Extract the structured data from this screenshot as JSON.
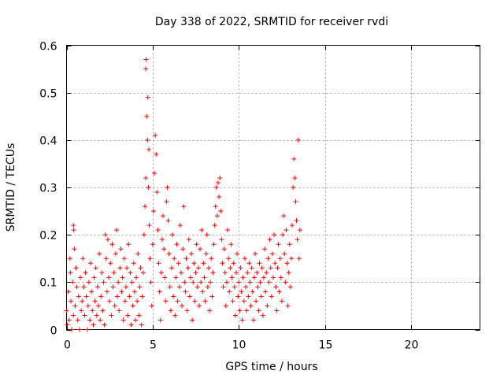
{
  "chart_data": {
    "type": "scatter",
    "title": "Day 338 of 2022, SRMTID for receiver rvdi",
    "xlabel": "GPS time / hours",
    "ylabel": "SRMTID / TECUs",
    "xlim": [
      0,
      24
    ],
    "ylim": [
      0,
      0.6
    ],
    "xticks": [
      0,
      5,
      10,
      15,
      20
    ],
    "yticks": [
      0,
      0.1,
      0.2,
      0.3,
      0.4,
      0.5,
      0.6
    ],
    "xtick_labels": [
      "0",
      "5",
      "10",
      "15",
      "20"
    ],
    "ytick_labels": [
      "0",
      "0.1",
      "0.2",
      "0.3",
      "0.4",
      "0.5",
      "0.6"
    ],
    "grid": true,
    "marker": "+",
    "color": "#ff0000",
    "series": [
      {
        "name": "rvdi",
        "points": [
          [
            0.0,
            0.04
          ],
          [
            0.05,
            0.01
          ],
          [
            0.1,
            0.08
          ],
          [
            0.15,
            0.02
          ],
          [
            0.2,
            0.15
          ],
          [
            0.22,
            0.12
          ],
          [
            0.25,
            0.06
          ],
          [
            0.3,
            0.0
          ],
          [
            0.35,
            0.1
          ],
          [
            0.4,
            0.03
          ],
          [
            0.4,
            0.22
          ],
          [
            0.42,
            0.21
          ],
          [
            0.45,
            0.17
          ],
          [
            0.5,
            0.05
          ],
          [
            0.55,
            0.13
          ],
          [
            0.6,
            0.09
          ],
          [
            0.65,
            0.02
          ],
          [
            0.7,
            0.07
          ],
          [
            0.75,
            0.0
          ],
          [
            0.8,
            0.11
          ],
          [
            0.85,
            0.04
          ],
          [
            0.9,
            0.06
          ],
          [
            0.95,
            0.15
          ],
          [
            1.0,
            0.09
          ],
          [
            1.05,
            0.03
          ],
          [
            1.1,
            0.12
          ],
          [
            1.15,
            0.07
          ],
          [
            1.2,
            0.0
          ],
          [
            1.25,
            0.05
          ],
          [
            1.3,
            0.1
          ],
          [
            1.35,
            0.02
          ],
          [
            1.4,
            0.14
          ],
          [
            1.45,
            0.08
          ],
          [
            1.5,
            0.04
          ],
          [
            1.55,
            0.01
          ],
          [
            1.6,
            0.11
          ],
          [
            1.65,
            0.06
          ],
          [
            1.7,
            0.13
          ],
          [
            1.75,
            0.03
          ],
          [
            1.8,
            0.09
          ],
          [
            1.85,
            0.05
          ],
          [
            1.9,
            0.16
          ],
          [
            1.95,
            0.02
          ],
          [
            2.0,
            0.07
          ],
          [
            2.05,
            0.12
          ],
          [
            2.1,
            0.04
          ],
          [
            2.15,
            0.1
          ],
          [
            2.2,
            0.01
          ],
          [
            2.25,
            0.2
          ],
          [
            2.3,
            0.15
          ],
          [
            2.35,
            0.08
          ],
          [
            2.4,
            0.19
          ],
          [
            2.45,
            0.11
          ],
          [
            2.5,
            0.06
          ],
          [
            2.55,
            0.14
          ],
          [
            2.6,
            0.03
          ],
          [
            2.65,
            0.18
          ],
          [
            2.7,
            0.09
          ],
          [
            2.75,
            0.12
          ],
          [
            2.8,
            0.05
          ],
          [
            2.85,
            0.16
          ],
          [
            2.9,
            0.21
          ],
          [
            2.95,
            0.07
          ],
          [
            3.0,
            0.1
          ],
          [
            3.05,
            0.04
          ],
          [
            3.1,
            0.13
          ],
          [
            3.15,
            0.17
          ],
          [
            3.2,
            0.08
          ],
          [
            3.25,
            0.11
          ],
          [
            3.3,
            0.02
          ],
          [
            3.35,
            0.15
          ],
          [
            3.4,
            0.06
          ],
          [
            3.45,
            0.09
          ],
          [
            3.5,
            0.13
          ],
          [
            3.55,
            0.03
          ],
          [
            3.6,
            0.18
          ],
          [
            3.65,
            0.07
          ],
          [
            3.7,
            0.12
          ],
          [
            3.75,
            0.01
          ],
          [
            3.8,
            0.1
          ],
          [
            3.85,
            0.05
          ],
          [
            3.9,
            0.14
          ],
          [
            3.95,
            0.08
          ],
          [
            4.0,
            0.02
          ],
          [
            4.05,
            0.11
          ],
          [
            4.1,
            0.06
          ],
          [
            4.15,
            0.16
          ],
          [
            4.2,
            0.03
          ],
          [
            4.25,
            0.09
          ],
          [
            4.3,
            0.13
          ],
          [
            4.35,
            0.01
          ],
          [
            4.4,
            0.07
          ],
          [
            4.45,
            0.12
          ],
          [
            4.5,
            0.2
          ],
          [
            4.55,
            0.26
          ],
          [
            4.6,
            0.32
          ],
          [
            4.6,
            0.55
          ],
          [
            4.62,
            0.57
          ],
          [
            4.65,
            0.45
          ],
          [
            4.7,
            0.4
          ],
          [
            4.72,
            0.49
          ],
          [
            4.75,
            0.3
          ],
          [
            4.78,
            0.38
          ],
          [
            4.8,
            0.22
          ],
          [
            4.85,
            0.15
          ],
          [
            4.9,
            0.1
          ],
          [
            4.95,
            0.05
          ],
          [
            5.0,
            0.18
          ],
          [
            5.05,
            0.25
          ],
          [
            5.1,
            0.33
          ],
          [
            5.15,
            0.41
          ],
          [
            5.2,
            0.37
          ],
          [
            5.25,
            0.29
          ],
          [
            5.3,
            0.21
          ],
          [
            5.35,
            0.14
          ],
          [
            5.4,
            0.08
          ],
          [
            5.45,
            0.02
          ],
          [
            5.5,
            0.12
          ],
          [
            5.55,
            0.19
          ],
          [
            5.6,
            0.24
          ],
          [
            5.65,
            0.17
          ],
          [
            5.7,
            0.11
          ],
          [
            5.75,
            0.06
          ],
          [
            5.8,
            0.27
          ],
          [
            5.85,
            0.3
          ],
          [
            5.9,
            0.23
          ],
          [
            5.95,
            0.16
          ],
          [
            6.0,
            0.09
          ],
          [
            6.05,
            0.04
          ],
          [
            6.1,
            0.13
          ],
          [
            6.15,
            0.2
          ],
          [
            6.2,
            0.07
          ],
          [
            6.25,
            0.15
          ],
          [
            6.3,
            0.03
          ],
          [
            6.35,
            0.11
          ],
          [
            6.4,
            0.18
          ],
          [
            6.45,
            0.06
          ],
          [
            6.5,
            0.14
          ],
          [
            6.55,
            0.09
          ],
          [
            6.6,
            0.22
          ],
          [
            6.65,
            0.12
          ],
          [
            6.7,
            0.05
          ],
          [
            6.75,
            0.17
          ],
          [
            6.8,
            0.26
          ],
          [
            6.85,
            0.1
          ],
          [
            6.9,
            0.08
          ],
          [
            6.95,
            0.15
          ],
          [
            7.0,
            0.04
          ],
          [
            7.05,
            0.13
          ],
          [
            7.1,
            0.19
          ],
          [
            7.15,
            0.07
          ],
          [
            7.2,
            0.11
          ],
          [
            7.25,
            0.16
          ],
          [
            7.3,
            0.02
          ],
          [
            7.35,
            0.1
          ],
          [
            7.4,
            0.14
          ],
          [
            7.45,
            0.06
          ],
          [
            7.5,
            0.12
          ],
          [
            7.55,
            0.18
          ],
          [
            7.6,
            0.09
          ],
          [
            7.65,
            0.13
          ],
          [
            7.7,
            0.05
          ],
          [
            7.75,
            0.17
          ],
          [
            7.8,
            0.1
          ],
          [
            7.85,
            0.21
          ],
          [
            7.9,
            0.08
          ],
          [
            7.95,
            0.14
          ],
          [
            8.0,
            0.11
          ],
          [
            8.05,
            0.06
          ],
          [
            8.1,
            0.16
          ],
          [
            8.15,
            0.2
          ],
          [
            8.2,
            0.09
          ],
          [
            8.25,
            0.13
          ],
          [
            8.3,
            0.04
          ],
          [
            8.35,
            0.1
          ],
          [
            8.4,
            0.15
          ],
          [
            8.45,
            0.07
          ],
          [
            8.5,
            0.12
          ],
          [
            8.55,
            0.18
          ],
          [
            8.6,
            0.22
          ],
          [
            8.65,
            0.26
          ],
          [
            8.7,
            0.3
          ],
          [
            8.75,
            0.24
          ],
          [
            8.8,
            0.31
          ],
          [
            8.85,
            0.28
          ],
          [
            8.9,
            0.32
          ],
          [
            8.95,
            0.25
          ],
          [
            9.0,
            0.19
          ],
          [
            9.05,
            0.14
          ],
          [
            9.1,
            0.09
          ],
          [
            9.15,
            0.17
          ],
          [
            9.2,
            0.12
          ],
          [
            9.25,
            0.05
          ],
          [
            9.3,
            0.1
          ],
          [
            9.35,
            0.21
          ],
          [
            9.4,
            0.15
          ],
          [
            9.45,
            0.08
          ],
          [
            9.5,
            0.13
          ],
          [
            9.55,
            0.18
          ],
          [
            9.6,
            0.11
          ],
          [
            9.65,
            0.06
          ],
          [
            9.7,
            0.14
          ],
          [
            9.75,
            0.09
          ],
          [
            9.8,
            0.03
          ],
          [
            9.85,
            0.12
          ],
          [
            9.9,
            0.16
          ],
          [
            9.95,
            0.07
          ],
          [
            10.0,
            0.1
          ],
          [
            10.05,
            0.04
          ],
          [
            10.1,
            0.13
          ],
          [
            10.15,
            0.08
          ],
          [
            10.2,
            0.02
          ],
          [
            10.25,
            0.11
          ],
          [
            10.3,
            0.06
          ],
          [
            10.35,
            0.15
          ],
          [
            10.4,
            0.09
          ],
          [
            10.45,
            0.04
          ],
          [
            10.5,
            0.12
          ],
          [
            10.55,
            0.07
          ],
          [
            10.6,
            0.14
          ],
          [
            10.65,
            0.1
          ],
          [
            10.7,
            0.05
          ],
          [
            10.75,
            0.13
          ],
          [
            10.8,
            0.08
          ],
          [
            10.85,
            0.02
          ],
          [
            10.9,
            0.11
          ],
          [
            10.95,
            0.16
          ],
          [
            11.0,
            0.06
          ],
          [
            11.05,
            0.12
          ],
          [
            11.1,
            0.09
          ],
          [
            11.15,
            0.04
          ],
          [
            11.2,
            0.14
          ],
          [
            11.25,
            0.1
          ],
          [
            11.3,
            0.07
          ],
          [
            11.35,
            0.13
          ],
          [
            11.4,
            0.03
          ],
          [
            11.45,
            0.11
          ],
          [
            11.5,
            0.17
          ],
          [
            11.55,
            0.08
          ],
          [
            11.6,
            0.12
          ],
          [
            11.65,
            0.05
          ],
          [
            11.7,
            0.15
          ],
          [
            11.75,
            0.1
          ],
          [
            11.8,
            0.19
          ],
          [
            11.85,
            0.13
          ],
          [
            11.9,
            0.07
          ],
          [
            11.95,
            0.16
          ],
          [
            12.0,
            0.11
          ],
          [
            12.05,
            0.2
          ],
          [
            12.1,
            0.14
          ],
          [
            12.15,
            0.09
          ],
          [
            12.2,
            0.04
          ],
          [
            12.25,
            0.13
          ],
          [
            12.3,
            0.18
          ],
          [
            12.35,
            0.08
          ],
          [
            12.4,
            0.15
          ],
          [
            12.45,
            0.11
          ],
          [
            12.5,
            0.06
          ],
          [
            12.55,
            0.2
          ],
          [
            12.6,
            0.24
          ],
          [
            12.65,
            0.16
          ],
          [
            12.7,
            0.1
          ],
          [
            12.75,
            0.21
          ],
          [
            12.8,
            0.14
          ],
          [
            12.85,
            0.05
          ],
          [
            12.9,
            0.12
          ],
          [
            12.95,
            0.18
          ],
          [
            13.0,
            0.09
          ],
          [
            13.05,
            0.15
          ],
          [
            13.1,
            0.22
          ],
          [
            13.15,
            0.3
          ],
          [
            13.2,
            0.36
          ],
          [
            13.25,
            0.32
          ],
          [
            13.3,
            0.27
          ],
          [
            13.35,
            0.23
          ],
          [
            13.4,
            0.19
          ],
          [
            13.45,
            0.4
          ],
          [
            13.5,
            0.15
          ],
          [
            13.55,
            0.21
          ]
        ]
      }
    ]
  }
}
